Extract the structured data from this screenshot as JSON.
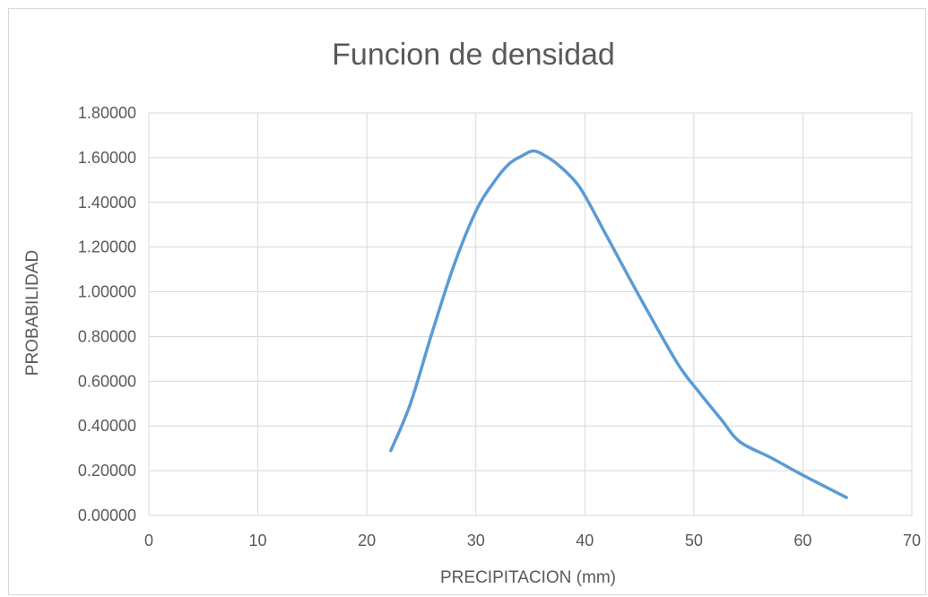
{
  "chart_data": {
    "type": "scatter",
    "title": "Funcion de densidad",
    "xlabel": "PRECIPITACION (mm)",
    "ylabel": "PROBABILIDAD",
    "xlim": [
      0,
      70
    ],
    "ylim": [
      0,
      1.8
    ],
    "x_ticks": [
      "0",
      "10",
      "20",
      "30",
      "40",
      "50",
      "60",
      "70"
    ],
    "y_ticks": [
      "0.00000",
      "0.20000",
      "0.40000",
      "0.60000",
      "0.80000",
      "1.00000",
      "1.20000",
      "1.40000",
      "1.60000",
      "1.80000"
    ],
    "grid": true,
    "legend": "none",
    "series": [
      {
        "color": "#5b9bd5",
        "x": [
          22.2,
          24.0,
          26.0,
          28.0,
          30.0,
          31.5,
          33.0,
          34.3,
          35.3,
          36.3,
          37.5,
          39.0,
          40.0,
          42.0,
          45.0,
          48.5,
          50.5,
          52.5,
          54.2,
          57.0,
          60.0,
          64.0
        ],
        "y": [
          0.29,
          0.5,
          0.82,
          1.12,
          1.36,
          1.48,
          1.57,
          1.61,
          1.63,
          1.61,
          1.57,
          1.5,
          1.43,
          1.25,
          0.98,
          0.68,
          0.55,
          0.43,
          0.33,
          0.26,
          0.18,
          0.08
        ]
      }
    ]
  }
}
